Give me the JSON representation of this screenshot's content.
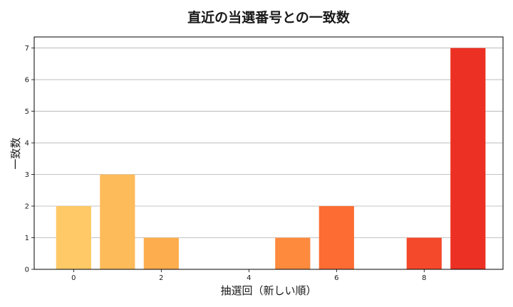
{
  "chart_data": {
    "type": "bar",
    "title": "直近の当選番号との一致数",
    "xlabel": "抽選回（新しい順）",
    "ylabel": "一致数",
    "x": [
      0,
      1,
      2,
      3,
      4,
      5,
      6,
      7,
      8,
      9
    ],
    "values": [
      2,
      3,
      1,
      0,
      0,
      1,
      2,
      0,
      1,
      7
    ],
    "colors": [
      "#fec966",
      "#febb5a",
      "#fead4e",
      "#fd9640",
      "#fd8a3d",
      "#fd8a3d",
      "#fc6c33",
      "#f4492a",
      "#f4492a",
      "#ec3023"
    ],
    "xlim": [
      -0.9,
      9.8
    ],
    "ylim": [
      0,
      7.35
    ],
    "xticks": [
      0,
      2,
      4,
      6,
      8
    ],
    "yticks": [
      0,
      1,
      2,
      3,
      4,
      5,
      6,
      7
    ],
    "grid": "y",
    "legend": "none"
  }
}
